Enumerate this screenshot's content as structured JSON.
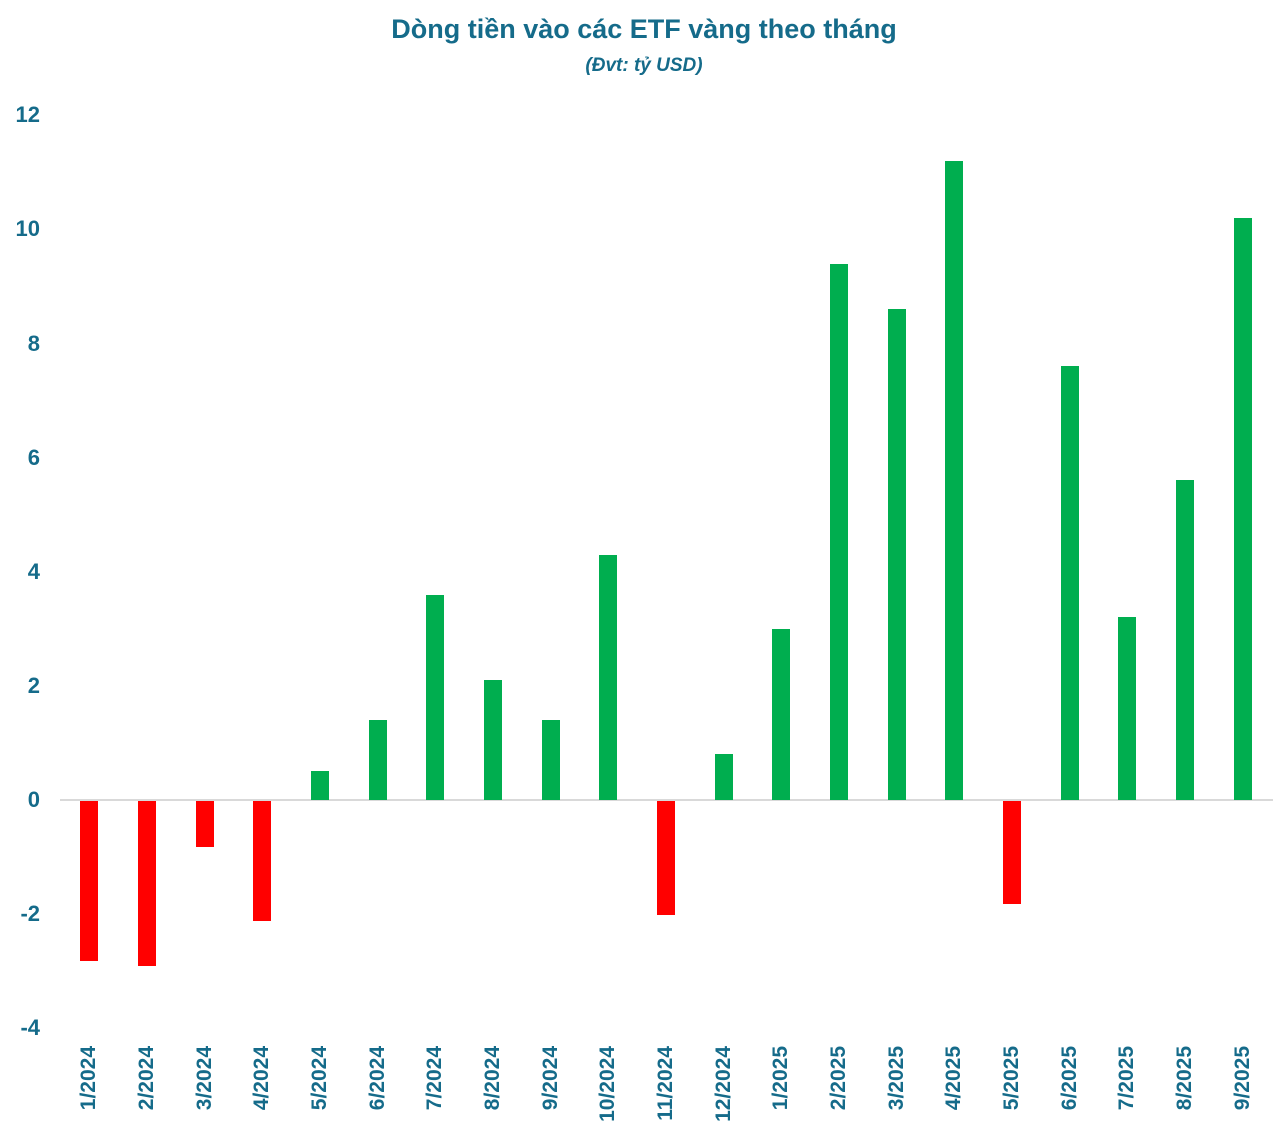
{
  "chart_data": {
    "type": "bar",
    "title": "Dòng tiền vào các ETF vàng theo tháng",
    "subtitle": "(Đvt: tỷ USD)",
    "unit": "tỷ USD",
    "categories": [
      "1/2024",
      "2/2024",
      "3/2024",
      "4/2024",
      "5/2024",
      "6/2024",
      "7/2024",
      "8/2024",
      "9/2024",
      "10/2024",
      "11/2024",
      "12/2024",
      "1/2025",
      "2/2025",
      "3/2025",
      "4/2025",
      "5/2025",
      "6/2025",
      "7/2025",
      "8/2025",
      "9/2025"
    ],
    "values": [
      -2.8,
      -2.9,
      -0.8,
      -2.1,
      0.5,
      1.4,
      3.6,
      2.1,
      1.4,
      4.3,
      -2.0,
      0.8,
      3.0,
      9.4,
      8.6,
      11.2,
      -1.8,
      7.6,
      3.2,
      5.6,
      10.2
    ],
    "y_ticks": [
      12,
      10,
      8,
      6,
      4,
      2,
      0,
      -2,
      -4
    ],
    "ylim": [
      -4,
      12
    ],
    "xlabel": "",
    "ylabel": "",
    "legend": "none",
    "grid": "zero-axis-line-only",
    "x_label_orientation": "vertical",
    "colors": {
      "positive_bar": "#00AE4F",
      "negative_bar": "#FF0000",
      "axis_text": "#156B8A",
      "title_text": "#156B8A",
      "zero_line": "#D9D9D9"
    }
  }
}
